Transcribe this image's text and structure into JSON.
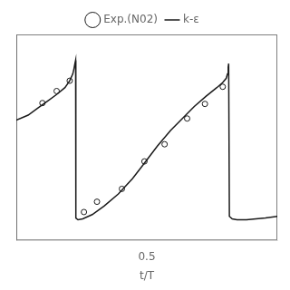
{
  "chart_data": {
    "type": "line",
    "xlabel": "t/T",
    "xlim": [
      -0.05,
      1.05
    ],
    "ylim": [
      -0.05,
      1.15
    ],
    "xticks": [
      0.5
    ],
    "tick_labels": "x",
    "grid": false,
    "legend": "top",
    "series": [
      {
        "name": "Exp.(N02)",
        "type": "scatter",
        "marker": "circle",
        "color": "#1a1a1a",
        "x": [
          0.06,
          0.12,
          0.175,
          0.235,
          0.29,
          0.395,
          0.49,
          0.575,
          0.67,
          0.745,
          0.82
        ],
        "values": [
          0.75,
          0.82,
          0.88,
          0.115,
          0.175,
          0.25,
          0.41,
          0.51,
          0.66,
          0.745,
          0.845
        ]
      },
      {
        "name": "k-ε",
        "type": "line",
        "line_style": "solid",
        "color": "#1a1a1a",
        "x": [
          -0.05,
          0.0,
          0.04,
          0.08,
          0.12,
          0.155,
          0.175,
          0.188,
          0.193,
          0.197,
          0.2,
          0.2,
          0.202,
          0.21,
          0.23,
          0.27,
          0.32,
          0.38,
          0.44,
          0.49,
          0.545,
          0.6,
          0.65,
          0.7,
          0.75,
          0.795,
          0.82,
          0.835,
          0.84,
          0.843,
          0.845,
          0.845,
          0.848,
          0.86,
          0.88,
          0.92,
          0.96,
          1.0,
          1.05
        ],
        "values": [
          0.65,
          0.68,
          0.72,
          0.76,
          0.8,
          0.84,
          0.88,
          0.92,
          0.95,
          0.98,
          1.0,
          1.0,
          0.08,
          0.07,
          0.075,
          0.1,
          0.15,
          0.22,
          0.31,
          0.4,
          0.5,
          0.59,
          0.66,
          0.73,
          0.79,
          0.84,
          0.87,
          0.895,
          0.92,
          0.96,
          0.98,
          0.98,
          0.09,
          0.075,
          0.07,
          0.07,
          0.075,
          0.08,
          0.09
        ]
      }
    ]
  }
}
